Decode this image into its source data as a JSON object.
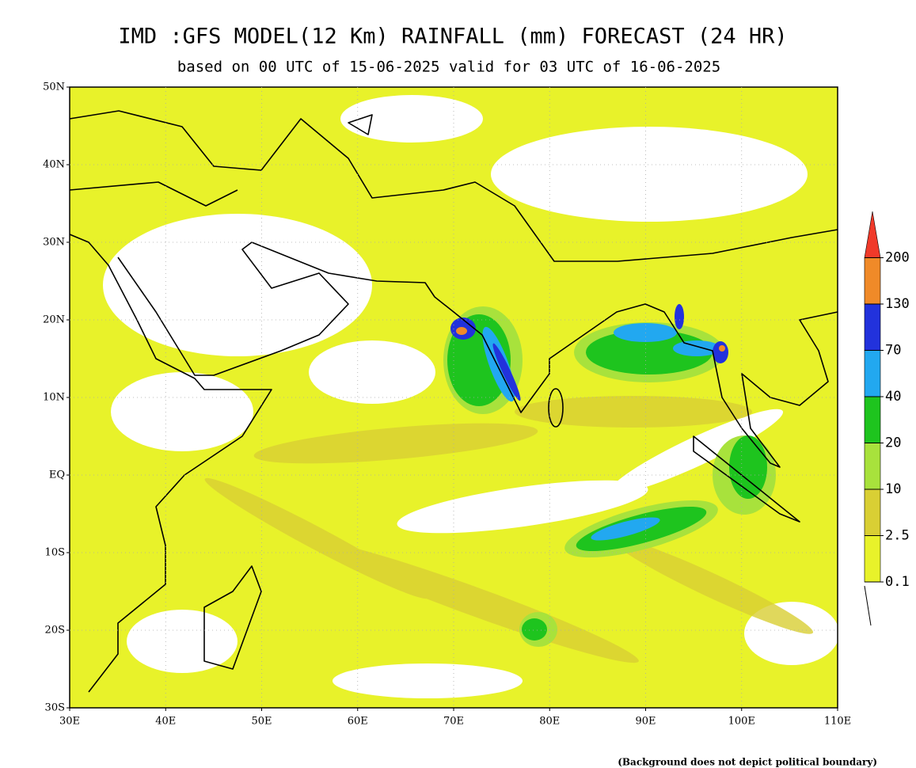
{
  "header": {
    "title": "IMD :GFS MODEL(12 Km) RAINFALL (mm) FORECAST (24 HR)",
    "subtitle": "based on 00 UTC of 15-06-2025 valid for 03 UTC of 16-06-2025"
  },
  "map": {
    "lat_labels": [
      "50N",
      "40N",
      "30N",
      "20N",
      "10N",
      "EQ",
      "10S",
      "20S",
      "30S"
    ],
    "lon_labels": [
      "30E",
      "40E",
      "50E",
      "60E",
      "70E",
      "80E",
      "90E",
      "100E",
      "110E"
    ]
  },
  "legend": {
    "levels": [
      0.1,
      2.5,
      10,
      20,
      40,
      70,
      130,
      200
    ],
    "colors": [
      "#e8f22a",
      "#d9cf34",
      "#a8e23c",
      "#1ec41e",
      "#22a8f0",
      "#2232dc",
      "#f08a28",
      "#f03a2a"
    ]
  },
  "footnote": "(Background does not depict political boundary)"
}
